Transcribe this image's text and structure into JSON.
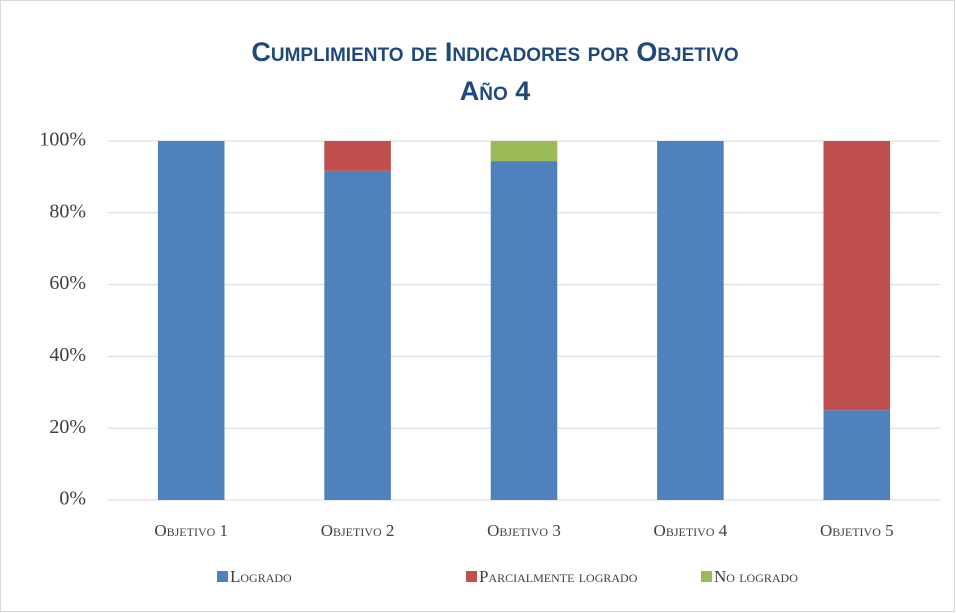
{
  "chart_data": {
    "type": "stacked_bar",
    "title": "Cumplimiento de Indicadores por Objetivo",
    "subtitle": "Año 4",
    "categories": [
      "Objetivo 1",
      "Objetivo 2",
      "Objetivo 3",
      "Objetivo 4",
      "Objetivo 5"
    ],
    "series": [
      {
        "name": "Logrado",
        "color": "#4f81bd",
        "values": [
          100,
          91.7,
          94.4,
          100,
          25
        ]
      },
      {
        "name": "Parcialmente logrado",
        "color": "#c0504d",
        "values": [
          0,
          8.3,
          0,
          0,
          75
        ]
      },
      {
        "name": "No logrado",
        "color": "#9bbb59",
        "values": [
          0,
          0,
          5.6,
          0,
          0
        ]
      }
    ],
    "ylim": [
      0,
      100
    ],
    "yticks": [
      {
        "value": 0,
        "label": "0%"
      },
      {
        "value": 20,
        "label": "20%"
      },
      {
        "value": 40,
        "label": "40%"
      },
      {
        "value": 60,
        "label": "60%"
      },
      {
        "value": 80,
        "label": "80%"
      },
      {
        "value": 100,
        "label": "100%"
      }
    ],
    "grid": true,
    "legend": "bottom"
  }
}
